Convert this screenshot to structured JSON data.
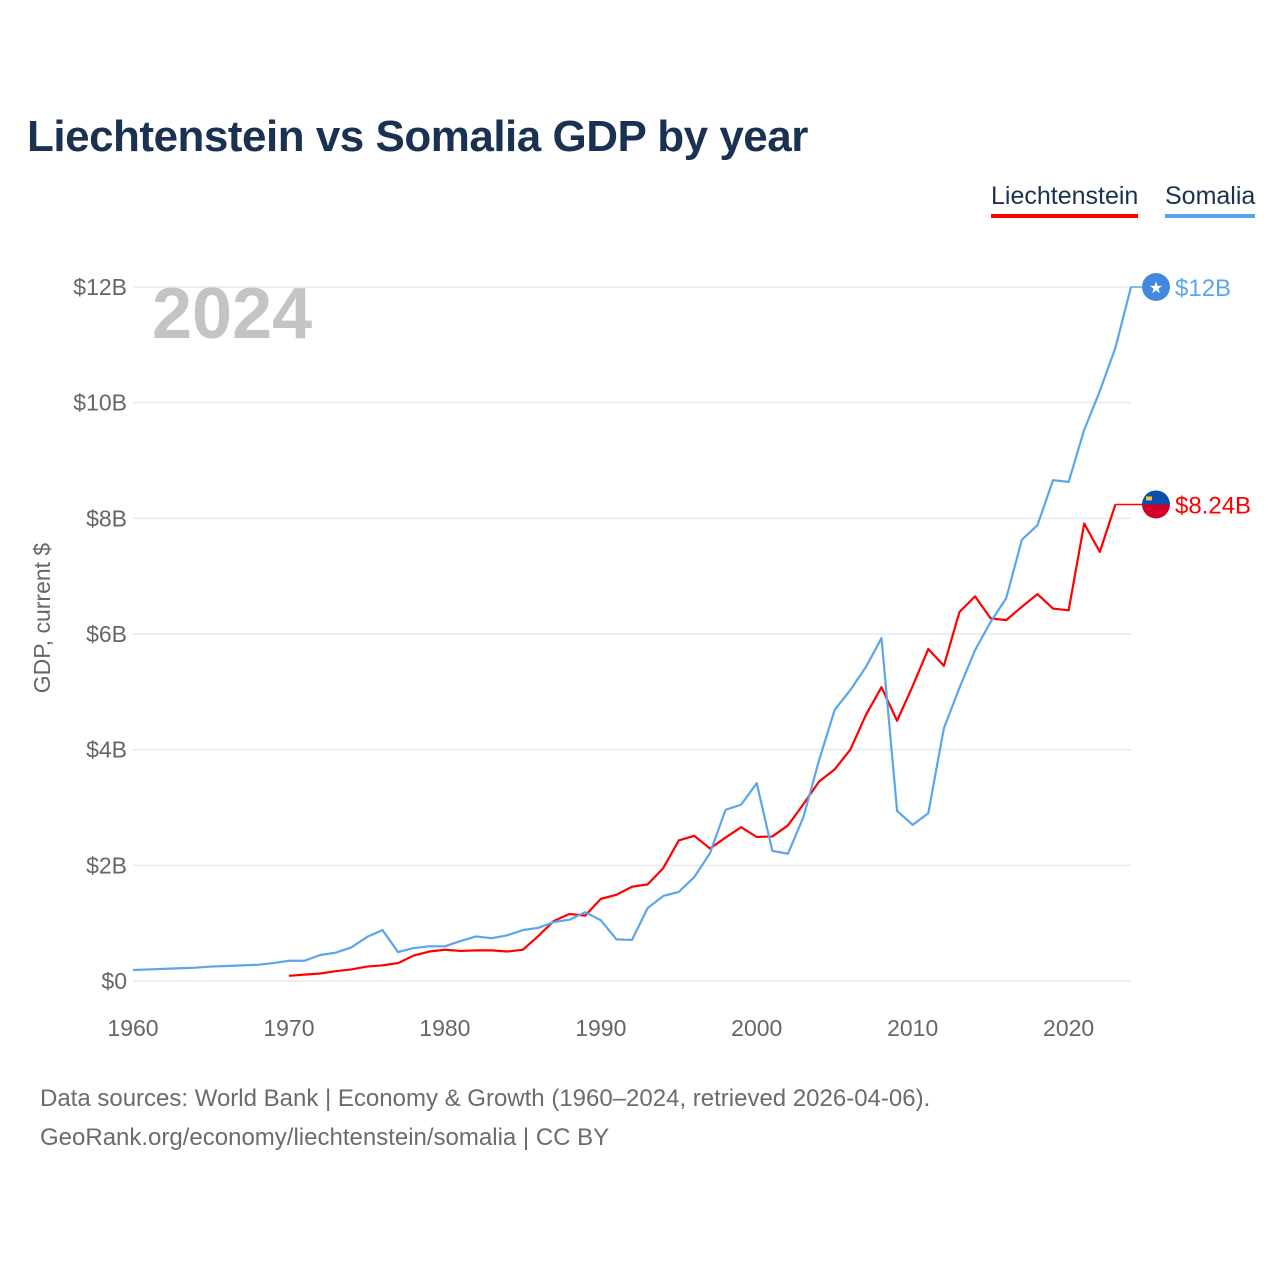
{
  "title": "Liechtenstein vs Somalia GDP by year",
  "legend": [
    "Liechtenstein",
    "Somalia"
  ],
  "year_label": "2024",
  "footer": {
    "line1": "Data sources: World Bank | Economy & Growth (1960–2024, retrieved 2026-04-06).",
    "line2": "GeoRank.org/economy/liechtenstein/somalia | CC BY"
  },
  "chart_data": {
    "type": "line",
    "title": "Liechtenstein vs Somalia GDP by year",
    "xlabel": "",
    "ylabel": "GDP, current $",
    "xlim": [
      1960,
      2024
    ],
    "ylim": [
      0,
      12
    ],
    "x_ticks": [
      1960,
      1970,
      1980,
      1990,
      2000,
      2010,
      2020
    ],
    "x_tick_labels": [
      "1960",
      "1970",
      "1980",
      "1990",
      "2000",
      "2010",
      "2020"
    ],
    "y_ticks": [
      0,
      2,
      4,
      6,
      8,
      10,
      12
    ],
    "y_tick_labels": [
      "$0",
      "$2B",
      "$4B",
      "$6B",
      "$8B",
      "$10B",
      "$12B"
    ],
    "grid": true,
    "legend_position": "top-right",
    "units": "billions USD",
    "series": [
      {
        "name": "Liechtenstein",
        "color": "#ff0000",
        "end_label": "$8.24B",
        "flag": "liechtenstein-flag",
        "x": [
          1970,
          1971,
          1972,
          1973,
          1974,
          1975,
          1976,
          1977,
          1978,
          1979,
          1980,
          1981,
          1982,
          1983,
          1984,
          1985,
          1986,
          1987,
          1988,
          1989,
          1990,
          1991,
          1992,
          1993,
          1994,
          1995,
          1996,
          1997,
          1998,
          1999,
          2000,
          2001,
          2002,
          2003,
          2004,
          2005,
          2006,
          2007,
          2008,
          2009,
          2010,
          2011,
          2012,
          2013,
          2014,
          2015,
          2016,
          2017,
          2018,
          2019,
          2020,
          2021,
          2022,
          2023
        ],
        "values": [
          0.09,
          0.11,
          0.13,
          0.17,
          0.2,
          0.25,
          0.27,
          0.31,
          0.44,
          0.51,
          0.54,
          0.52,
          0.53,
          0.53,
          0.51,
          0.54,
          0.78,
          1.04,
          1.16,
          1.13,
          1.42,
          1.49,
          1.63,
          1.67,
          1.95,
          2.43,
          2.51,
          2.29,
          2.48,
          2.66,
          2.49,
          2.5,
          2.69,
          3.06,
          3.45,
          3.66,
          4.0,
          4.6,
          5.08,
          4.5,
          5.1,
          5.74,
          5.45,
          6.38,
          6.65,
          6.27,
          6.24,
          6.47,
          6.69,
          6.44,
          6.41,
          7.91,
          7.42,
          8.24
        ]
      },
      {
        "name": "Somalia",
        "color": "#5aa5ec",
        "end_label": "$12B",
        "flag": "somalia-flag",
        "x": [
          1960,
          1961,
          1962,
          1963,
          1964,
          1965,
          1966,
          1967,
          1968,
          1969,
          1970,
          1971,
          1972,
          1973,
          1974,
          1975,
          1976,
          1977,
          1978,
          1979,
          1980,
          1981,
          1982,
          1983,
          1984,
          1985,
          1986,
          1987,
          1988,
          1989,
          1990,
          1991,
          1992,
          1993,
          1994,
          1995,
          1996,
          1997,
          1998,
          1999,
          2000,
          2001,
          2002,
          2003,
          2004,
          2005,
          2006,
          2007,
          2008,
          2009,
          2010,
          2011,
          2012,
          2013,
          2014,
          2015,
          2016,
          2017,
          2018,
          2019,
          2020,
          2021,
          2022,
          2023,
          2024
        ],
        "values": [
          0.19,
          0.2,
          0.21,
          0.22,
          0.23,
          0.25,
          0.26,
          0.27,
          0.28,
          0.31,
          0.35,
          0.35,
          0.45,
          0.49,
          0.58,
          0.76,
          0.88,
          0.5,
          0.57,
          0.6,
          0.6,
          0.69,
          0.77,
          0.74,
          0.79,
          0.88,
          0.92,
          1.02,
          1.06,
          1.19,
          1.05,
          0.72,
          0.71,
          1.26,
          1.47,
          1.54,
          1.8,
          2.21,
          2.96,
          3.05,
          3.42,
          2.25,
          2.2,
          2.84,
          3.82,
          4.69,
          5.03,
          5.43,
          5.93,
          2.94,
          2.7,
          2.9,
          4.37,
          5.07,
          5.72,
          6.21,
          6.62,
          7.63,
          7.88,
          8.66,
          8.63,
          9.53,
          10.2,
          10.95,
          12.0
        ]
      }
    ]
  }
}
